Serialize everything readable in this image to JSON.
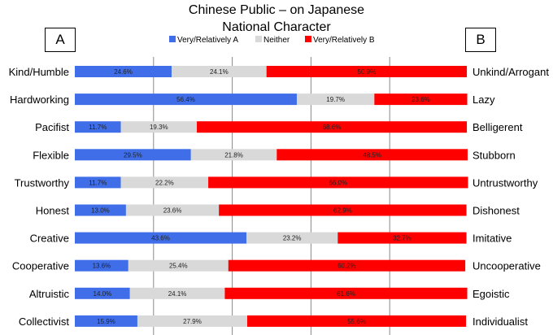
{
  "chart_data": {
    "type": "bar",
    "stacked": true,
    "orientation": "horizontal",
    "title": "Chinese Public – on Japanese National Character",
    "title_lines": [
      "Chinese Public – on Japanese",
      "National Character"
    ],
    "left_label": "A",
    "right_label": "B",
    "xlim": [
      0,
      100
    ],
    "grid": true,
    "legend_position": "top-center",
    "categories_left": [
      "Kind/Humble",
      "Hardworking",
      "Pacifist",
      "Flexible",
      "Trustworthy",
      "Honest",
      "Creative",
      "Cooperative",
      "Altruistic",
      "Collectivist"
    ],
    "categories_right": [
      "Unkind/Arrogant",
      "Lazy",
      "Belligerent",
      "Stubborn",
      "Untrustworthy",
      "Dishonest",
      "Imitative",
      "Uncooperative",
      "Egoistic",
      "Individualist"
    ],
    "series": [
      {
        "name": "Very/Relatively A",
        "color": "#3f6ee8",
        "values": [
          24.6,
          56.4,
          11.7,
          29.5,
          11.7,
          13.0,
          43.6,
          13.6,
          14.0,
          15.9
        ],
        "labels": [
          "24.6%",
          "56.4%",
          "11.7%",
          "29.5%",
          "11.7%",
          "13.0%",
          "43.6%",
          "13.6%",
          "14.0%",
          "15.9%"
        ]
      },
      {
        "name": "Neither",
        "color": "#d9d9d9",
        "values": [
          24.1,
          19.7,
          19.3,
          21.8,
          22.2,
          23.6,
          23.2,
          25.4,
          24.1,
          27.9
        ],
        "labels": [
          "24.1%",
          "19.7%",
          "19.3%",
          "21.8%",
          "22.2%",
          "23.6%",
          "23.2%",
          "25.4%",
          "24.1%",
          "27.9%"
        ]
      },
      {
        "name": "Very/Relatively B",
        "color": "#ff0000",
        "values": [
          50.9,
          23.6,
          68.6,
          48.5,
          66.0,
          62.9,
          32.7,
          60.2,
          61.6,
          55.6
        ],
        "labels": [
          "50.9%",
          "23.6%",
          "68.6%",
          "48.5%",
          "66.0%",
          "62.9%",
          "32.7%",
          "60.2%",
          "61.6%",
          "55.6%"
        ]
      }
    ]
  }
}
